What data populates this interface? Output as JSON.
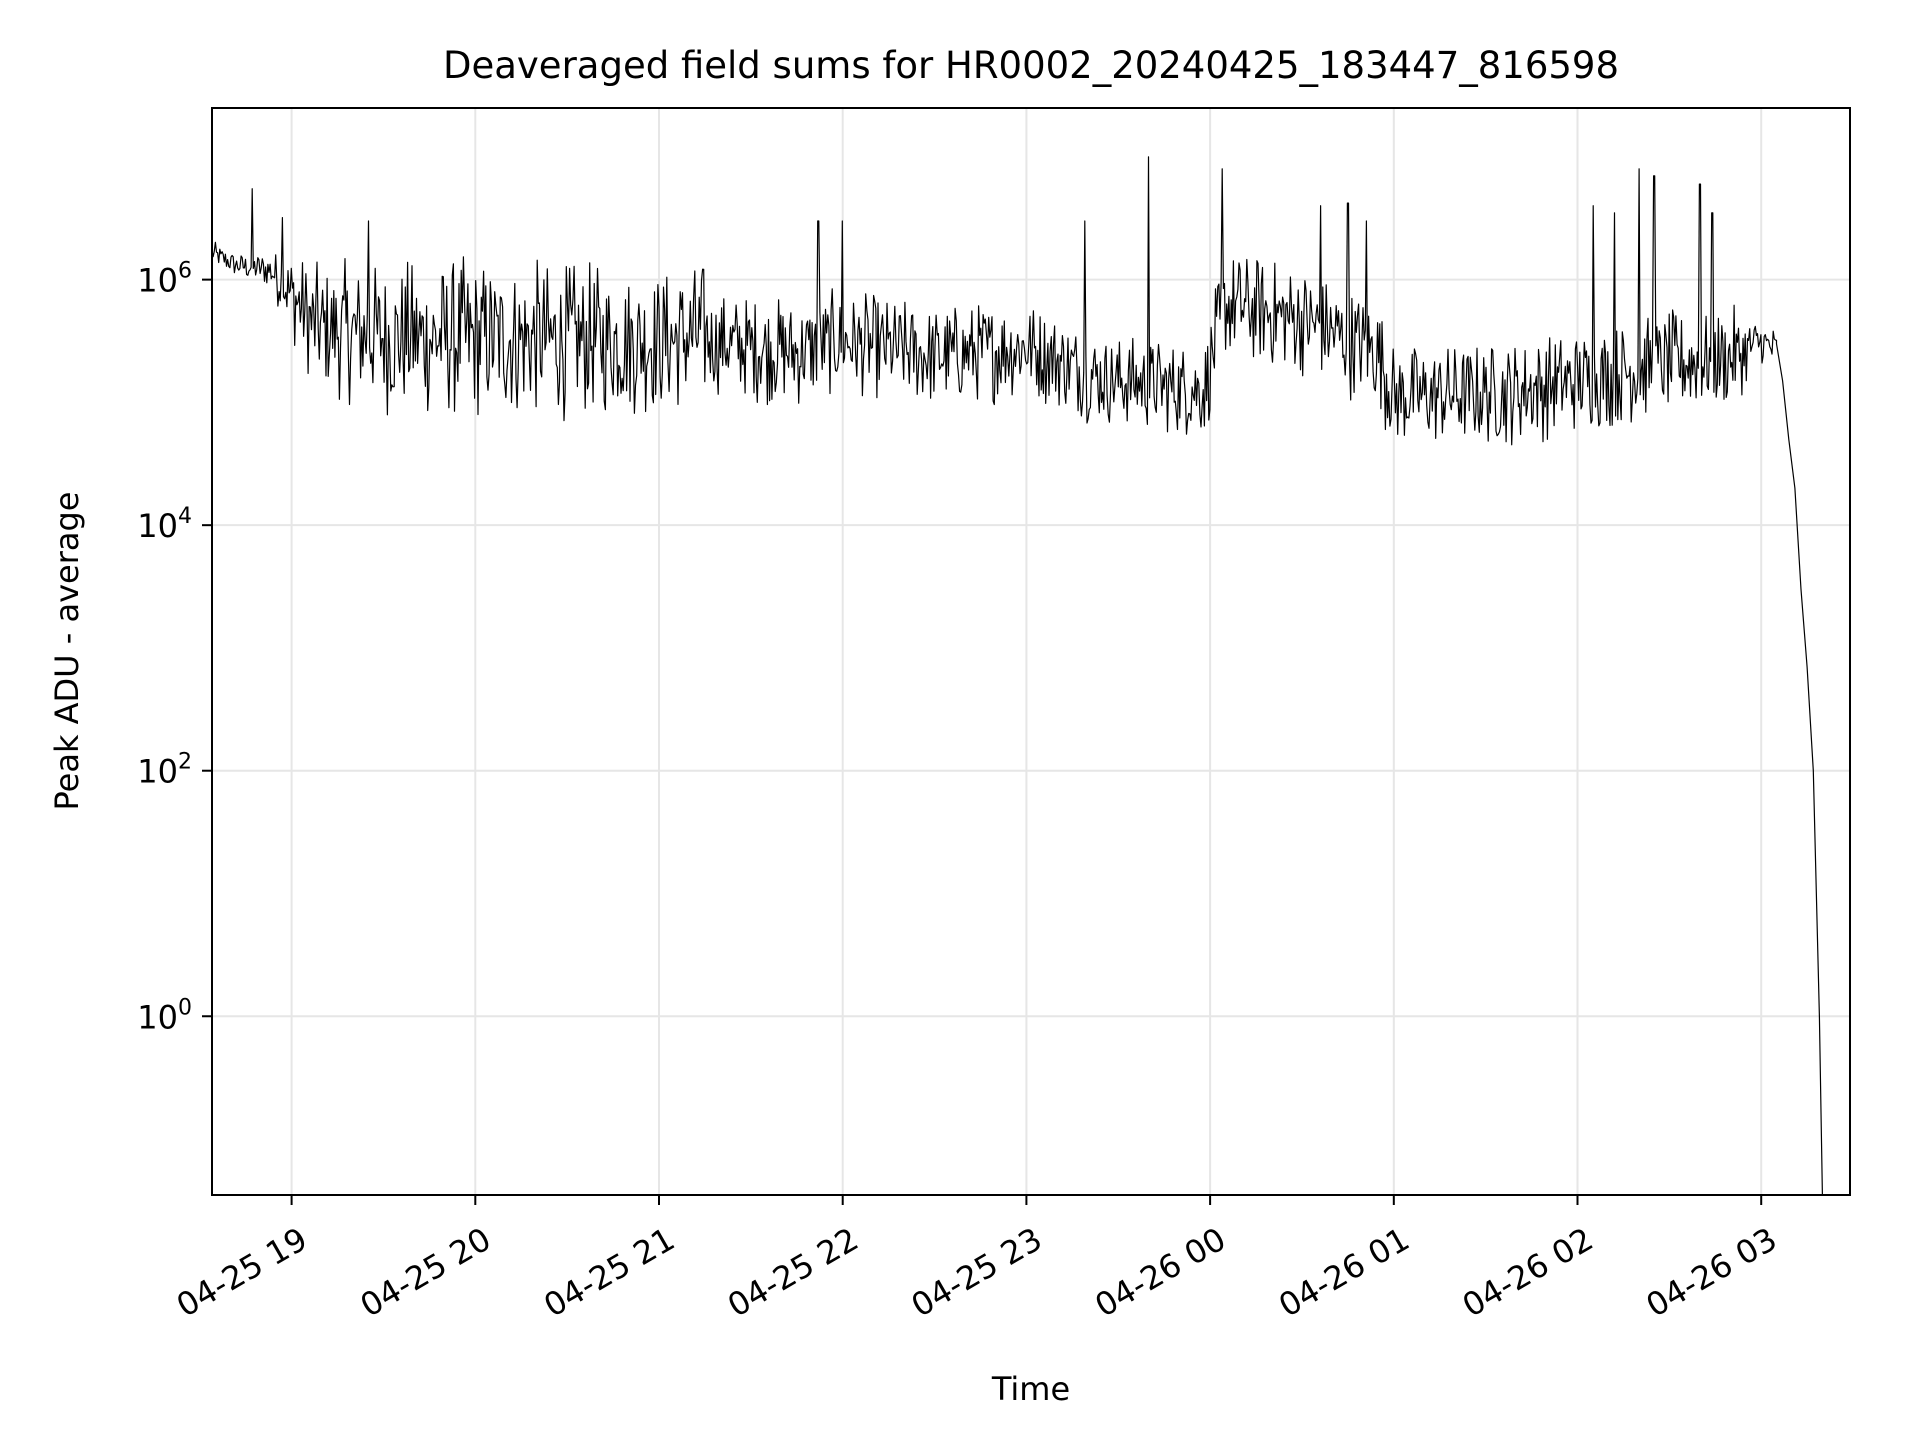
{
  "chart_data": {
    "type": "line",
    "title": "Deaveraged field sums for HR0002_20240425_183447_816598",
    "xlabel": "Time",
    "ylabel": "Peak ADU - average",
    "y_scale": "log",
    "ylim": [
      0.035,
      25000000.0
    ],
    "xlim": [
      "2024-04-25 18:34",
      "2024-04-26 03:29"
    ],
    "grid": true,
    "line_color": "#000000",
    "grid_color": "#e6e6e6",
    "x_ticks": [
      {
        "t": "2024-04-25 19:00",
        "label": "04-25 19"
      },
      {
        "t": "2024-04-25 20:00",
        "label": "04-25 20"
      },
      {
        "t": "2024-04-25 21:00",
        "label": "04-25 21"
      },
      {
        "t": "2024-04-25 22:00",
        "label": "04-25 22"
      },
      {
        "t": "2024-04-25 23:00",
        "label": "04-25 23"
      },
      {
        "t": "2024-04-26 00:00",
        "label": "04-26 00"
      },
      {
        "t": "2024-04-26 01:00",
        "label": "04-26 01"
      },
      {
        "t": "2024-04-26 02:00",
        "label": "04-26 02"
      },
      {
        "t": "2024-04-26 03:00",
        "label": "04-26 03"
      }
    ],
    "y_ticks": [
      {
        "value": 1,
        "base": "10",
        "exp": "0"
      },
      {
        "value": 100,
        "base": "10",
        "exp": "2"
      },
      {
        "value": 10000,
        "base": "10",
        "exp": "4"
      },
      {
        "value": 1000000,
        "base": "10",
        "exp": "6"
      }
    ],
    "series": [
      {
        "envelope": [
          {
            "t": "2024-04-25 18:34",
            "lo": 1300000,
            "hi": 2100000
          },
          {
            "t": "2024-04-25 18:42",
            "lo": 1000000,
            "hi": 1700000
          },
          {
            "t": "2024-04-25 18:53",
            "lo": 800000,
            "hi": 1800000
          },
          {
            "t": "2024-04-25 19:01",
            "lo": 250000,
            "hi": 2000000
          },
          {
            "t": "2024-04-25 19:08",
            "lo": 110000,
            "hi": 1500000
          },
          {
            "t": "2024-04-25 19:20",
            "lo": 85000,
            "hi": 1600000
          },
          {
            "t": "2024-04-25 19:35",
            "lo": 65000,
            "hi": 1700000
          },
          {
            "t": "2024-04-25 20:00",
            "lo": 60000,
            "hi": 1800000
          },
          {
            "t": "2024-04-25 20:30",
            "lo": 65000,
            "hi": 1600000
          },
          {
            "t": "2024-04-25 21:00",
            "lo": 70000,
            "hi": 1400000
          },
          {
            "t": "2024-04-25 21:15",
            "lo": 75000,
            "hi": 1700000
          },
          {
            "t": "2024-04-25 21:17",
            "lo": 110000,
            "hi": 900000
          },
          {
            "t": "2024-04-25 21:45",
            "lo": 80000,
            "hi": 800000
          },
          {
            "t": "2024-04-25 22:00",
            "lo": 110000,
            "hi": 900000
          },
          {
            "t": "2024-04-25 22:30",
            "lo": 80000,
            "hi": 700000
          },
          {
            "t": "2024-04-25 23:00",
            "lo": 100000,
            "hi": 800000
          },
          {
            "t": "2024-04-25 23:25",
            "lo": 60000,
            "hi": 400000
          },
          {
            "t": "2024-04-25 23:58",
            "lo": 45000,
            "hi": 350000
          },
          {
            "t": "2024-04-26 00:05",
            "lo": 200000,
            "hi": 2000000
          },
          {
            "t": "2024-04-26 00:30",
            "lo": 150000,
            "hi": 1500000
          },
          {
            "t": "2024-04-26 00:55",
            "lo": 80000,
            "hi": 800000
          },
          {
            "t": "2024-04-26 01:00",
            "lo": 38000,
            "hi": 330000
          },
          {
            "t": "2024-04-26 01:35",
            "lo": 40000,
            "hi": 350000
          },
          {
            "t": "2024-04-26 02:00",
            "lo": 50000,
            "hi": 450000
          },
          {
            "t": "2024-04-26 02:30",
            "lo": 70000,
            "hi": 600000
          },
          {
            "t": "2024-04-26 02:50",
            "lo": 80000,
            "hi": 650000
          },
          {
            "t": "2024-04-26 03:00",
            "lo": 200000,
            "hi": 500000
          },
          {
            "t": "2024-04-26 03:05",
            "lo": 150000,
            "hi": 450000
          }
        ],
        "spikes": [
          {
            "t": "2024-04-25 18:47",
            "value": 5500000
          },
          {
            "t": "2024-04-25 18:57",
            "value": 3200000
          },
          {
            "t": "2024-04-25 19:25",
            "value": 3000000
          },
          {
            "t": "2024-04-25 21:52",
            "value": 3000000
          },
          {
            "t": "2024-04-25 22:00",
            "value": 3000000
          },
          {
            "t": "2024-04-25 23:19",
            "value": 3000000
          },
          {
            "t": "2024-04-25 23:40",
            "value": 10000000
          },
          {
            "t": "2024-04-26 00:04",
            "value": 8000000
          },
          {
            "t": "2024-04-26 00:36",
            "value": 4000000
          },
          {
            "t": "2024-04-26 00:45",
            "value": 4200000
          },
          {
            "t": "2024-04-26 00:51",
            "value": 3000000
          },
          {
            "t": "2024-04-26 02:05",
            "value": 4000000
          },
          {
            "t": "2024-04-26 02:12",
            "value": 3500000
          },
          {
            "t": "2024-04-26 02:20",
            "value": 8000000
          },
          {
            "t": "2024-04-26 02:25",
            "value": 7000000
          },
          {
            "t": "2024-04-26 02:40",
            "value": 6000000
          },
          {
            "t": "2024-04-26 02:44",
            "value": 3500000
          }
        ],
        "tail": [
          {
            "t": "2024-04-26 03:05",
            "value": 300000
          },
          {
            "t": "2024-04-26 03:07",
            "value": 150000
          },
          {
            "t": "2024-04-26 03:09",
            "value": 50000
          },
          {
            "t": "2024-04-26 03:11",
            "value": 20000
          },
          {
            "t": "2024-04-26 03:13",
            "value": 3000
          },
          {
            "t": "2024-04-26 03:15",
            "value": 700
          },
          {
            "t": "2024-04-26 03:17",
            "value": 100
          },
          {
            "t": "2024-04-26 03:19",
            "value": 1
          },
          {
            "t": "2024-04-26 03:20",
            "value": 0.035
          }
        ]
      }
    ]
  }
}
